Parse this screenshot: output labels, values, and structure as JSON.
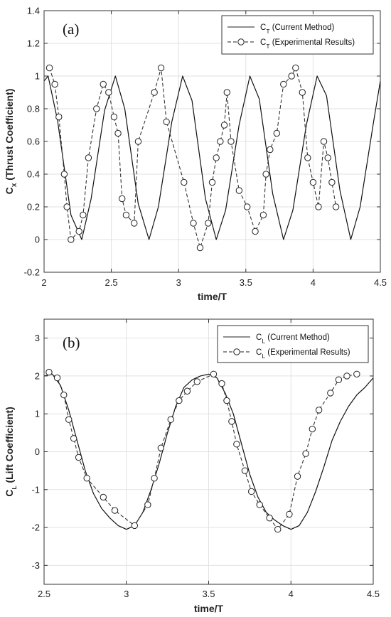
{
  "chart_data": [
    {
      "type": "line",
      "panel_label": "(a)",
      "xlabel": "time/T",
      "ylabel_main": "C",
      "ylabel_sub": "X",
      "ylabel_rest": " (Thrust Coefficient)",
      "xlim": [
        2,
        4.5
      ],
      "ylim": [
        -0.2,
        1.4
      ],
      "xticks": [
        "2",
        "2.5",
        "3",
        "3.5",
        "4",
        "4.5"
      ],
      "yticks": [
        "-0.2",
        "0",
        "0.2",
        "0.4",
        "0.6",
        "0.8",
        "1",
        "1.2",
        "1.4"
      ],
      "grid": true,
      "legend_position": "top-right",
      "series": [
        {
          "style": "solid",
          "legend_main": "C",
          "legend_sub": "T",
          "legend_rest": " (Current Method)",
          "x": [
            2.0,
            2.03,
            2.1,
            2.2,
            2.28,
            2.35,
            2.45,
            2.53,
            2.6,
            2.7,
            2.78,
            2.85,
            2.95,
            3.03,
            3.1,
            3.2,
            3.28,
            3.35,
            3.45,
            3.53,
            3.6,
            3.7,
            3.78,
            3.85,
            3.95,
            4.03,
            4.1,
            4.2,
            4.28,
            4.35,
            4.45,
            4.5
          ],
          "y": [
            0.97,
            1.0,
            0.73,
            0.15,
            0.0,
            0.25,
            0.79,
            1.0,
            0.8,
            0.22,
            0.0,
            0.2,
            0.72,
            1.0,
            0.85,
            0.25,
            0.0,
            0.18,
            0.7,
            1.0,
            0.86,
            0.28,
            0.0,
            0.18,
            0.7,
            1.0,
            0.88,
            0.3,
            0.0,
            0.2,
            0.72,
            0.97
          ]
        },
        {
          "style": "dashed-circle",
          "legend_main": "C",
          "legend_sub": "T",
          "legend_rest": " (Experimental Results)",
          "x": [
            2.04,
            2.08,
            2.11,
            2.15,
            2.17,
            2.2,
            2.26,
            2.29,
            2.33,
            2.39,
            2.44,
            2.48,
            2.52,
            2.55,
            2.58,
            2.61,
            2.67,
            2.7,
            2.82,
            2.87,
            2.91,
            3.04,
            3.11,
            3.16,
            3.22,
            3.25,
            3.28,
            3.31,
            3.34,
            3.36,
            3.39,
            3.45,
            3.51,
            3.57,
            3.63,
            3.65,
            3.68,
            3.73,
            3.78,
            3.84,
            3.87,
            3.92,
            3.96,
            4.0,
            4.04,
            4.08,
            4.11,
            4.14,
            4.17
          ],
          "y": [
            1.05,
            0.95,
            0.75,
            0.4,
            0.2,
            0.0,
            0.05,
            0.15,
            0.5,
            0.8,
            0.95,
            0.9,
            0.75,
            0.65,
            0.25,
            0.15,
            0.1,
            0.6,
            0.9,
            1.05,
            0.72,
            0.35,
            0.1,
            -0.05,
            0.1,
            0.35,
            0.5,
            0.6,
            0.7,
            0.9,
            0.6,
            0.3,
            0.2,
            0.05,
            0.15,
            0.4,
            0.55,
            0.65,
            0.95,
            1.0,
            1.05,
            0.9,
            0.5,
            0.35,
            0.2,
            0.6,
            0.5,
            0.35,
            0.2
          ]
        }
      ]
    },
    {
      "type": "line",
      "panel_label": "(b)",
      "xlabel": "time/T",
      "ylabel_main": "C",
      "ylabel_sub": "L",
      "ylabel_rest": " (Lift Coefficient)",
      "xlim": [
        2.5,
        4.5
      ],
      "ylim": [
        -3.5,
        3.5
      ],
      "xticks": [
        "2.5",
        "3",
        "3.5",
        "4",
        "4.5"
      ],
      "yticks": [
        "-3",
        "-2",
        "-1",
        "0",
        "1",
        "2",
        "3"
      ],
      "grid": true,
      "legend_position": "top-right",
      "series": [
        {
          "style": "solid",
          "legend_main": "C",
          "legend_sub": "L",
          "legend_rest": " (Current Method)",
          "x": [
            2.5,
            2.55,
            2.6,
            2.65,
            2.7,
            2.75,
            2.8,
            2.85,
            2.9,
            2.95,
            3.0,
            3.05,
            3.1,
            3.15,
            3.2,
            3.25,
            3.3,
            3.35,
            3.4,
            3.45,
            3.5,
            3.55,
            3.6,
            3.65,
            3.7,
            3.75,
            3.8,
            3.85,
            3.9,
            3.95,
            4.0,
            4.05,
            4.1,
            4.15,
            4.2,
            4.25,
            4.3,
            4.35,
            4.4,
            4.45,
            4.5
          ],
          "y": [
            2.0,
            2.05,
            1.75,
            1.1,
            0.3,
            -0.5,
            -1.1,
            -1.5,
            -1.75,
            -1.95,
            -2.05,
            -1.95,
            -1.6,
            -1.0,
            -0.3,
            0.5,
            1.2,
            1.7,
            1.9,
            2.0,
            2.05,
            1.95,
            1.55,
            1.0,
            0.2,
            -0.6,
            -1.2,
            -1.6,
            -1.8,
            -1.95,
            -2.05,
            -1.95,
            -1.6,
            -1.05,
            -0.4,
            0.3,
            0.8,
            1.2,
            1.5,
            1.7,
            1.95
          ]
        },
        {
          "style": "dashed-circle",
          "legend_main": "C",
          "legend_sub": "L",
          "legend_rest": " (Experimental Results)",
          "x": [
            2.53,
            2.58,
            2.62,
            2.65,
            2.68,
            2.71,
            2.76,
            2.86,
            2.93,
            3.05,
            3.13,
            3.17,
            3.21,
            3.27,
            3.32,
            3.37,
            3.43,
            3.53,
            3.58,
            3.61,
            3.64,
            3.67,
            3.72,
            3.76,
            3.81,
            3.87,
            3.92,
            3.99,
            4.04,
            4.09,
            4.13,
            4.17,
            4.24,
            4.29,
            4.34,
            4.4
          ],
          "y": [
            2.1,
            1.95,
            1.5,
            0.85,
            0.35,
            -0.15,
            -0.7,
            -1.2,
            -1.55,
            -1.95,
            -1.4,
            -0.7,
            0.1,
            0.85,
            1.35,
            1.6,
            1.85,
            2.05,
            1.8,
            1.35,
            0.8,
            0.2,
            -0.5,
            -1.05,
            -1.4,
            -1.75,
            -2.05,
            -1.65,
            -0.65,
            -0.05,
            0.6,
            1.1,
            1.55,
            1.9,
            2.0,
            2.05
          ]
        }
      ]
    }
  ]
}
